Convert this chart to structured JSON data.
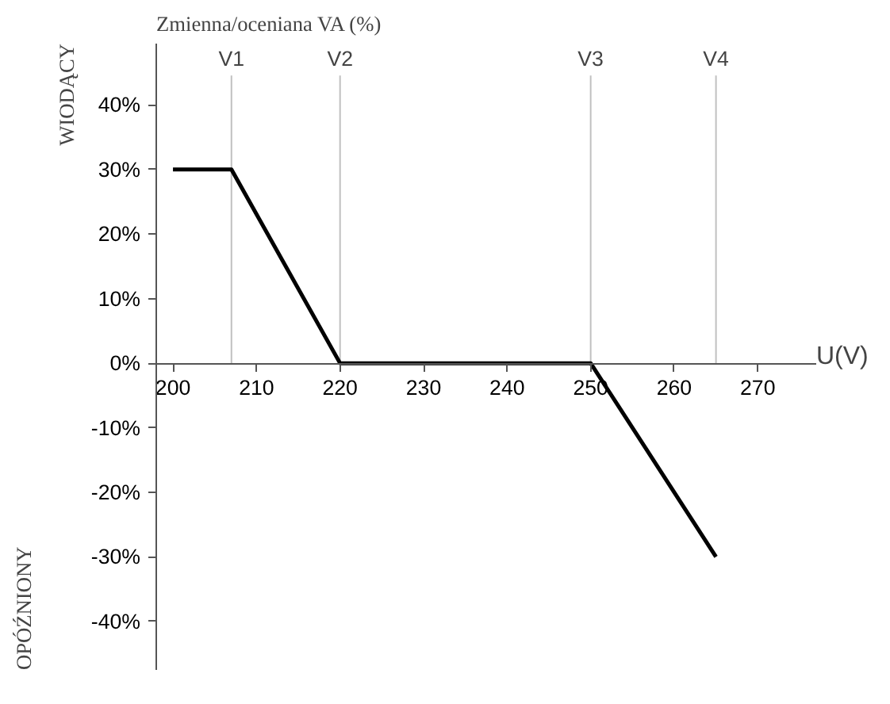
{
  "chart_data": {
    "type": "line",
    "xlabel": "U(V)",
    "ylabel": "Zmienna/oceniana VA (%)",
    "annotations": [
      "WIODĄCY",
      "OPÓŹNIONY"
    ],
    "x": [
      200,
      207,
      220,
      250,
      265
    ],
    "series": [
      {
        "color": "#000000",
        "values": [
          30,
          30,
          0,
          0,
          -30
        ]
      }
    ],
    "xlim": [
      198,
      277
    ],
    "ylim": [
      -47.5,
      49.5
    ],
    "xticks": [
      200,
      210,
      220,
      230,
      240,
      250,
      260,
      270
    ],
    "yticks": [
      {
        "value": -40,
        "label": "-40%"
      },
      {
        "value": -30,
        "label": "-30%"
      },
      {
        "value": -20,
        "label": "-20%"
      },
      {
        "value": -10,
        "label": "-10%"
      },
      {
        "value": 0,
        "label": "0%"
      },
      {
        "value": 10,
        "label": "10%"
      },
      {
        "value": 20,
        "label": "20%"
      },
      {
        "value": 30,
        "label": "30%"
      },
      {
        "value": 40,
        "label": "40%"
      }
    ],
    "ref_lines": [
      {
        "axis": "x",
        "value": 207,
        "label": "V1",
        "color": "#c0c0c0"
      },
      {
        "axis": "x",
        "value": 220,
        "label": "V2",
        "color": "#c0c0c0"
      },
      {
        "axis": "x",
        "value": 250,
        "label": "V3",
        "color": "#c0c0c0"
      },
      {
        "axis": "x",
        "value": 265,
        "label": "V4",
        "color": "#c0c0c0"
      }
    ],
    "grid": false,
    "marker": "none",
    "line_style": "solid"
  }
}
